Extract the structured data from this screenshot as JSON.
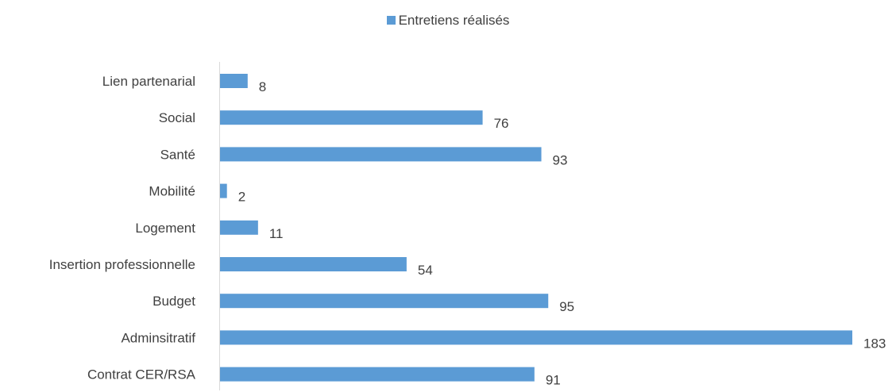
{
  "chart_data": {
    "type": "bar",
    "orientation": "horizontal",
    "categories": [
      "Lien partenarial",
      "Social",
      "Santé",
      "Mobilité",
      "Logement",
      "Insertion professionnelle",
      "Budget",
      "Adminsitratif",
      "Contrat CER/RSA"
    ],
    "series": [
      {
        "name": "Entretiens réalisés",
        "color": "#5b9bd5",
        "values": [
          8,
          76,
          93,
          2,
          11,
          54,
          95,
          183,
          91
        ]
      }
    ],
    "xlim": [
      0,
      183
    ],
    "grid": false,
    "legend_position": "top",
    "data_labels": true
  }
}
